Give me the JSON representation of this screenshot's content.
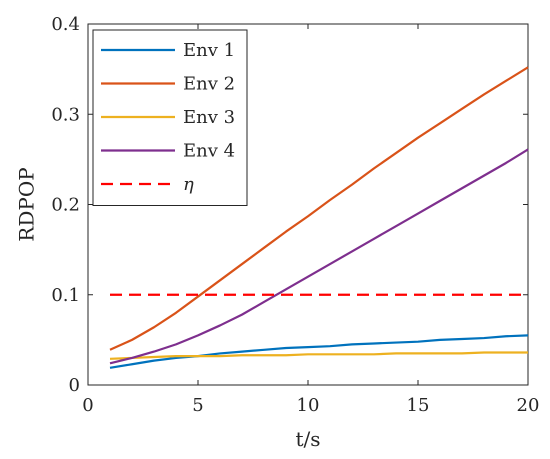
{
  "chart_data": {
    "type": "line",
    "title": "",
    "xlabel": "t/s",
    "ylabel": "RDPOP",
    "xlim": [
      0,
      20
    ],
    "ylim": [
      0,
      0.4
    ],
    "xticks": [
      0,
      5,
      10,
      15,
      20
    ],
    "xtick_labels": [
      "0",
      "5",
      "10",
      "15",
      "20"
    ],
    "yticks": [
      0,
      0.1,
      0.2,
      0.3,
      0.4
    ],
    "ytick_labels": [
      "0",
      "0.1",
      "0.2",
      "0.3",
      "0.4"
    ],
    "grid": false,
    "legend_position": "top-left",
    "x": [
      1,
      2,
      3,
      4,
      5,
      6,
      7,
      8,
      9,
      10,
      11,
      12,
      13,
      14,
      15,
      16,
      17,
      18,
      19,
      20
    ],
    "series": [
      {
        "name": "Env 1",
        "color": "#0072BD",
        "dash": "solid",
        "values": [
          0.019,
          0.023,
          0.027,
          0.03,
          0.032,
          0.035,
          0.037,
          0.039,
          0.041,
          0.042,
          0.043,
          0.045,
          0.046,
          0.047,
          0.048,
          0.05,
          0.051,
          0.052,
          0.054,
          0.055
        ]
      },
      {
        "name": "Env 2",
        "color": "#D95319",
        "dash": "solid",
        "values": [
          0.039,
          0.05,
          0.064,
          0.08,
          0.098,
          0.116,
          0.134,
          0.152,
          0.17,
          0.187,
          0.205,
          0.222,
          0.24,
          0.257,
          0.274,
          0.29,
          0.306,
          0.322,
          0.337,
          0.352
        ]
      },
      {
        "name": "Env 3",
        "color": "#EDB120",
        "dash": "solid",
        "values": [
          0.029,
          0.03,
          0.031,
          0.032,
          0.032,
          0.032,
          0.033,
          0.033,
          0.033,
          0.034,
          0.034,
          0.034,
          0.034,
          0.035,
          0.035,
          0.035,
          0.035,
          0.036,
          0.036,
          0.036
        ]
      },
      {
        "name": "Env 4",
        "color": "#7E2F8E",
        "dash": "solid",
        "values": [
          0.024,
          0.03,
          0.037,
          0.045,
          0.055,
          0.066,
          0.078,
          0.092,
          0.106,
          0.12,
          0.134,
          0.148,
          0.162,
          0.176,
          0.19,
          0.204,
          0.218,
          0.232,
          0.246,
          0.261
        ]
      },
      {
        "name": "η",
        "color": "#FF0000",
        "dash": "dashed",
        "values": [
          0.1,
          0.1,
          0.1,
          0.1,
          0.1,
          0.1,
          0.1,
          0.1,
          0.1,
          0.1,
          0.1,
          0.1,
          0.1,
          0.1,
          0.1,
          0.1,
          0.1,
          0.1,
          0.1,
          0.1
        ]
      }
    ]
  }
}
